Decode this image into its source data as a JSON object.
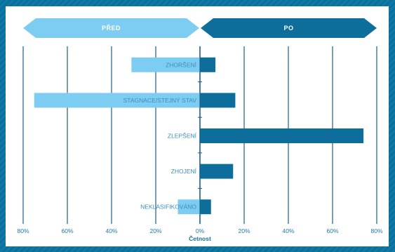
{
  "colors": {
    "before": "#7dcdf2",
    "after": "#0d6e9b",
    "grid": "#1c5f82",
    "label": "#3b8fb9",
    "tick": "#1f77a5"
  },
  "chart_data": {
    "type": "bar",
    "orientation": "horizontal",
    "layout": "diverging",
    "title": "",
    "xlabel": "Četnost",
    "ylabel": "",
    "xlim": [
      -80,
      80
    ],
    "x_unit": "%",
    "tick_labels": [
      "80%",
      "60%",
      "40%",
      "20%",
      "0%",
      "20%",
      "40%",
      "60%",
      "80%"
    ],
    "tick_values": [
      -80,
      -60,
      -40,
      -20,
      0,
      20,
      40,
      60,
      80
    ],
    "direction_labels": {
      "left": "PŘED",
      "right": "PO"
    },
    "categories": [
      "ZHORŠENÍ",
      "STAGNACE/STEJNÝ STAV",
      "ZLEPŠENÍ",
      "ZHOJENÍ",
      "NEKLASIFIKOVÁNO"
    ],
    "series": [
      {
        "name": "PŘED",
        "side": "left",
        "values": [
          31,
          75,
          0,
          0,
          10
        ]
      },
      {
        "name": "PO",
        "side": "right",
        "values": [
          7,
          16,
          74,
          15,
          5
        ]
      }
    ]
  }
}
